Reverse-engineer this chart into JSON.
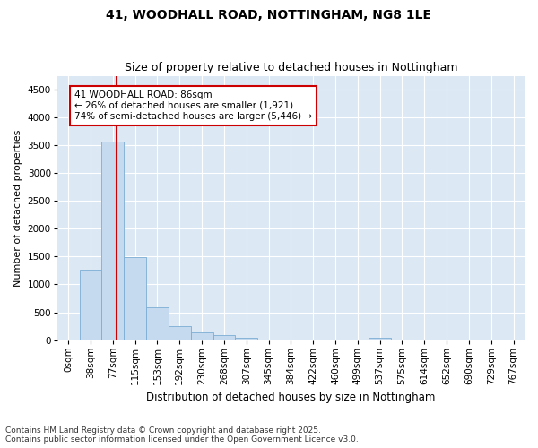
{
  "title_line1": "41, WOODHALL ROAD, NOTTINGHAM, NG8 1LE",
  "title_line2": "Size of property relative to detached houses in Nottingham",
  "xlabel": "Distribution of detached houses by size in Nottingham",
  "ylabel": "Number of detached properties",
  "bar_labels": [
    "0sqm",
    "38sqm",
    "77sqm",
    "115sqm",
    "153sqm",
    "192sqm",
    "230sqm",
    "268sqm",
    "307sqm",
    "345sqm",
    "384sqm",
    "422sqm",
    "460sqm",
    "499sqm",
    "537sqm",
    "575sqm",
    "614sqm",
    "652sqm",
    "690sqm",
    "729sqm",
    "767sqm"
  ],
  "bar_values": [
    10,
    1270,
    3560,
    1490,
    590,
    250,
    145,
    85,
    35,
    15,
    5,
    0,
    0,
    0,
    40,
    0,
    0,
    0,
    0,
    0,
    0
  ],
  "bar_color": "#c5d9ef",
  "bar_edge_color": "#7aadd4",
  "vline_x": 2.18,
  "vline_color": "#cc0000",
  "annotation_text": "41 WOODHALL ROAD: 86sqm\n← 26% of detached houses are smaller (1,921)\n74% of semi-detached houses are larger (5,446) →",
  "annotation_box_facecolor": "#ffffff",
  "annotation_box_edgecolor": "#cc0000",
  "annotation_fontsize": 7.5,
  "ylim": [
    0,
    4750
  ],
  "yticks": [
    0,
    500,
    1000,
    1500,
    2000,
    2500,
    3000,
    3500,
    4000,
    4500
  ],
  "background_color": "#dce9f5",
  "grid_color": "#ffffff",
  "footer_text": "Contains HM Land Registry data © Crown copyright and database right 2025.\nContains public sector information licensed under the Open Government Licence v3.0.",
  "title_fontsize": 10,
  "subtitle_fontsize": 9,
  "xlabel_fontsize": 8.5,
  "ylabel_fontsize": 8,
  "tick_fontsize": 7.5,
  "footer_fontsize": 6.5
}
